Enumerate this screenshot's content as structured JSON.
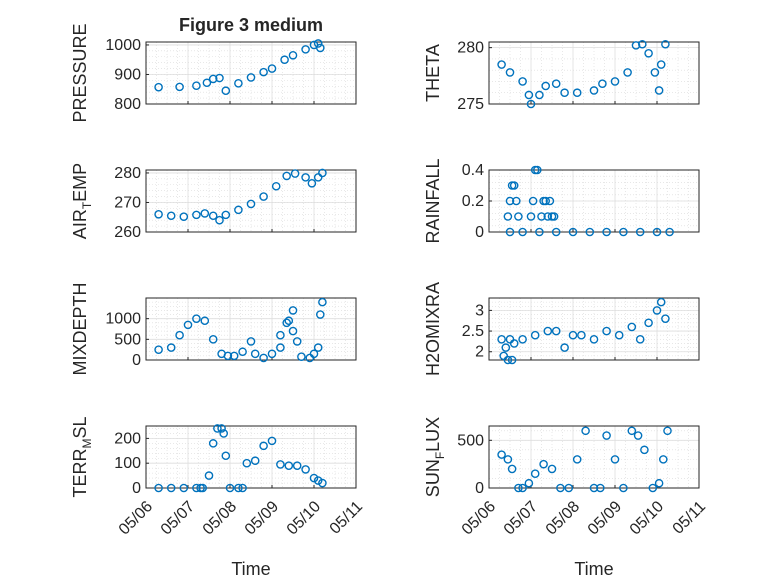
{
  "figure": {
    "title": "Figure 3 medium",
    "xlabel": "Time",
    "x_ticks": [
      "05/06",
      "05/07",
      "05/08",
      "05/09",
      "05/10",
      "05/11"
    ],
    "marker_color": "#0072BD"
  },
  "chart_data": [
    {
      "id": "pressure",
      "type": "scatter",
      "ylabel": "PRESSURE",
      "ylim": [
        800,
        1010
      ],
      "yticks": [
        800,
        900,
        1000
      ],
      "grid": true,
      "x": [
        0.3,
        0.8,
        1.2,
        1.45,
        1.6,
        1.75,
        1.9,
        2.2,
        2.5,
        2.8,
        3.0,
        3.3,
        3.5,
        3.8,
        4.0,
        4.1,
        4.15
      ],
      "y": [
        857,
        858,
        862,
        872,
        885,
        888,
        845,
        870,
        890,
        908,
        920,
        950,
        965,
        985,
        1000,
        1005,
        990
      ]
    },
    {
      "id": "theta",
      "type": "scatter",
      "ylabel": "THETA",
      "ylim": [
        275,
        280.5
      ],
      "yticks": [
        275,
        280
      ],
      "grid": true,
      "x": [
        0.3,
        0.5,
        0.8,
        0.95,
        1.0,
        1.2,
        1.35,
        1.6,
        1.8,
        2.1,
        2.5,
        2.7,
        3.0,
        3.3,
        3.5,
        3.65,
        3.8,
        3.95,
        4.05,
        4.1,
        4.2
      ],
      "y": [
        278.5,
        277.8,
        277,
        275.8,
        275,
        275.8,
        276.6,
        276.8,
        276,
        276,
        276.2,
        276.8,
        277,
        277.8,
        280.2,
        280.3,
        279.5,
        277.8,
        276.2,
        278.5,
        280.3
      ]
    },
    {
      "id": "air_temp",
      "type": "scatter",
      "ylabel": "AIR",
      "ylabel_sub": "T",
      "ylabel_tail": "EMP",
      "ylim": [
        260,
        281
      ],
      "yticks": [
        260,
        270,
        280
      ],
      "grid": true,
      "x": [
        0.3,
        0.6,
        0.9,
        1.2,
        1.4,
        1.6,
        1.75,
        1.9,
        2.2,
        2.5,
        2.8,
        3.1,
        3.35,
        3.55,
        3.8,
        3.95,
        4.1,
        4.2
      ],
      "y": [
        266,
        265.5,
        265.2,
        265.8,
        266.3,
        265.5,
        264,
        265.8,
        267.5,
        269.5,
        272,
        275.5,
        279,
        279.8,
        278.5,
        276.5,
        278.5,
        280
      ]
    },
    {
      "id": "rainfall",
      "type": "scatter",
      "ylabel": "RAINFALL",
      "ylim": [
        0,
        0.4
      ],
      "yticks": [
        0,
        0.2,
        0.4
      ],
      "grid": true,
      "x": [
        0.45,
        0.5,
        0.55,
        0.6,
        0.65,
        0.7,
        1.0,
        1.05,
        1.1,
        1.15,
        1.25,
        1.3,
        1.35,
        1.4,
        1.45,
        1.5,
        1.55,
        0.5,
        0.8,
        1.2,
        1.6,
        2.0,
        2.4,
        2.8,
        3.2,
        3.6,
        4.0,
        4.3
      ],
      "y": [
        0.1,
        0.2,
        0.3,
        0.3,
        0.2,
        0.1,
        0.1,
        0.2,
        0.4,
        0.4,
        0.1,
        0.2,
        0.2,
        0.1,
        0.2,
        0.1,
        0.1,
        0,
        0,
        0,
        0,
        0,
        0,
        0,
        0,
        0,
        0,
        0
      ]
    },
    {
      "id": "mixdepth",
      "type": "scatter",
      "ylabel": "MIXDEPTH",
      "ylim": [
        0,
        1500
      ],
      "yticks": [
        0,
        500,
        1000
      ],
      "grid": true,
      "x": [
        0.3,
        0.6,
        0.8,
        1.0,
        1.2,
        1.4,
        1.6,
        1.8,
        1.95,
        2.1,
        2.3,
        2.5,
        2.6,
        2.8,
        3.0,
        3.2,
        3.35,
        3.5,
        3.7,
        3.9,
        4.0,
        4.1,
        4.15,
        4.2,
        3.2,
        3.4,
        3.5,
        3.6
      ],
      "y": [
        250,
        300,
        600,
        850,
        1000,
        950,
        500,
        150,
        100,
        100,
        200,
        450,
        150,
        50,
        150,
        300,
        900,
        1200,
        80,
        50,
        150,
        300,
        1100,
        1400,
        600,
        950,
        700,
        450
      ]
    },
    {
      "id": "h2omixra",
      "type": "scatter",
      "ylabel": "H2OMIXRA",
      "ylim": [
        1.8,
        3.3
      ],
      "yticks": [
        2,
        2.5,
        3
      ],
      "grid": true,
      "x": [
        0.3,
        0.35,
        0.4,
        0.45,
        0.5,
        0.55,
        0.6,
        0.8,
        1.1,
        1.4,
        1.6,
        1.8,
        2.0,
        2.2,
        2.5,
        2.8,
        3.1,
        3.4,
        3.6,
        3.8,
        4.0,
        4.1,
        4.2
      ],
      "y": [
        2.3,
        1.9,
        2.1,
        1.8,
        2.3,
        1.8,
        2.2,
        2.3,
        2.4,
        2.5,
        2.5,
        2.1,
        2.4,
        2.4,
        2.3,
        2.5,
        2.4,
        2.6,
        2.3,
        2.7,
        3.0,
        3.2,
        2.8
      ]
    },
    {
      "id": "terr_msl",
      "type": "scatter",
      "ylabel": "TERR",
      "ylabel_sub": "M",
      "ylabel_tail": "SL",
      "ylim": [
        0,
        250
      ],
      "yticks": [
        0,
        100,
        200
      ],
      "grid": true,
      "x": [
        0.3,
        0.6,
        0.9,
        1.2,
        1.35,
        1.5,
        1.6,
        1.7,
        1.8,
        1.85,
        1.9,
        2.0,
        2.2,
        2.4,
        2.6,
        2.8,
        3.0,
        3.2,
        3.4,
        3.6,
        3.8,
        4.0,
        4.1,
        4.2,
        1.3,
        2.3
      ],
      "y": [
        0,
        0,
        0,
        0,
        0,
        50,
        180,
        240,
        240,
        220,
        130,
        0,
        0,
        100,
        110,
        170,
        190,
        95,
        90,
        90,
        75,
        40,
        30,
        20,
        0,
        0
      ]
    },
    {
      "id": "sun_flux",
      "type": "scatter",
      "ylabel": "SUN",
      "ylabel_sub": "F",
      "ylabel_tail": "LUX",
      "ylim": [
        0,
        650
      ],
      "yticks": [
        0,
        500
      ],
      "grid": true,
      "x": [
        0.3,
        0.45,
        0.55,
        0.7,
        0.8,
        0.95,
        1.1,
        1.3,
        1.5,
        1.7,
        1.9,
        2.1,
        2.3,
        2.5,
        2.65,
        2.8,
        3.0,
        3.2,
        3.4,
        3.55,
        3.7,
        3.9,
        4.05,
        4.15,
        4.25
      ],
      "y": [
        350,
        300,
        200,
        0,
        0,
        50,
        150,
        250,
        200,
        0,
        0,
        300,
        600,
        0,
        0,
        550,
        300,
        0,
        600,
        550,
        400,
        0,
        50,
        300,
        600
      ]
    }
  ]
}
